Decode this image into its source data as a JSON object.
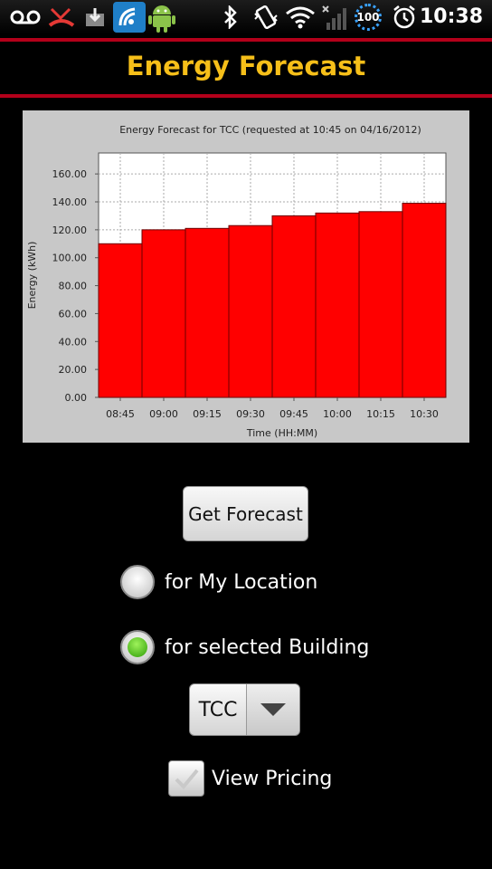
{
  "status_bar": {
    "time": "10:38",
    "battery_level": "100",
    "icons": [
      "voicemail-icon",
      "missed-call-icon",
      "download-icon",
      "hotspot-app-icon",
      "android-icon",
      "bluetooth-icon",
      "vibrate-icon",
      "wifi-icon",
      "signal-icon",
      "battery-icon",
      "alarm-icon"
    ]
  },
  "app": {
    "title": "Energy Forecast",
    "accent_color": "#f6bf19",
    "divider_color": "#b3001a"
  },
  "chart_data": {
    "type": "bar",
    "title": "Energy Forecast for TCC (requested at 10:45 on 04/16/2012)",
    "xlabel": "Time (HH:MM)",
    "ylabel": "Energy (kWh)",
    "categories": [
      "08:45",
      "09:00",
      "09:15",
      "09:30",
      "09:45",
      "10:00",
      "10:15",
      "10:30"
    ],
    "values": [
      110,
      120,
      121,
      123,
      130,
      132,
      133,
      139
    ],
    "ylim": [
      0,
      175
    ],
    "yticks": [
      "0.00",
      "20.00",
      "40.00",
      "60.00",
      "80.00",
      "100.00",
      "120.00",
      "140.00",
      "160.00"
    ],
    "bar_color": "#ff0000",
    "grid": true
  },
  "controls": {
    "get_forecast_label": "Get Forecast",
    "radio_my_location": "for My Location",
    "radio_selected_building": "for selected Building",
    "selected_radio": "for selected Building",
    "building_value": "TCC",
    "view_pricing_label": "View Pricing",
    "view_pricing_checked": false
  }
}
